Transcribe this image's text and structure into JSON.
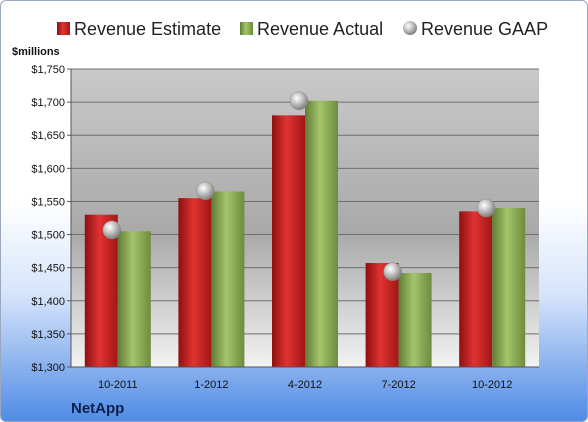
{
  "chart_data": {
    "type": "bar",
    "unit_label": "$millions",
    "categories": [
      "10-2011",
      "1-2012",
      "4-2012",
      "7-2012",
      "10-2012"
    ],
    "series": [
      {
        "name": "Revenue Estimate",
        "values": [
          1530,
          1555,
          1680,
          1457,
          1535
        ],
        "color": "#d42a2a"
      },
      {
        "name": "Revenue Actual",
        "values": [
          1505,
          1565,
          1702,
          1442,
          1540
        ],
        "color": "#8fb05a"
      },
      {
        "name": "Revenue GAAP",
        "values": [
          1507,
          1566,
          1702,
          1444,
          1540
        ],
        "color": "#b8b8b8",
        "marker": "sphere"
      }
    ],
    "ylim": [
      1300,
      1750
    ],
    "yticks": [
      1300,
      1350,
      1400,
      1450,
      1500,
      1550,
      1600,
      1650,
      1700,
      1750
    ],
    "ytick_labels": [
      "$1,300",
      "$1,350",
      "$1,400",
      "$1,450",
      "$1,500",
      "$1,550",
      "$1,600",
      "$1,650",
      "$1,700",
      "$1,750"
    ],
    "grid": true,
    "legend_position": "top"
  },
  "company": "NetApp"
}
